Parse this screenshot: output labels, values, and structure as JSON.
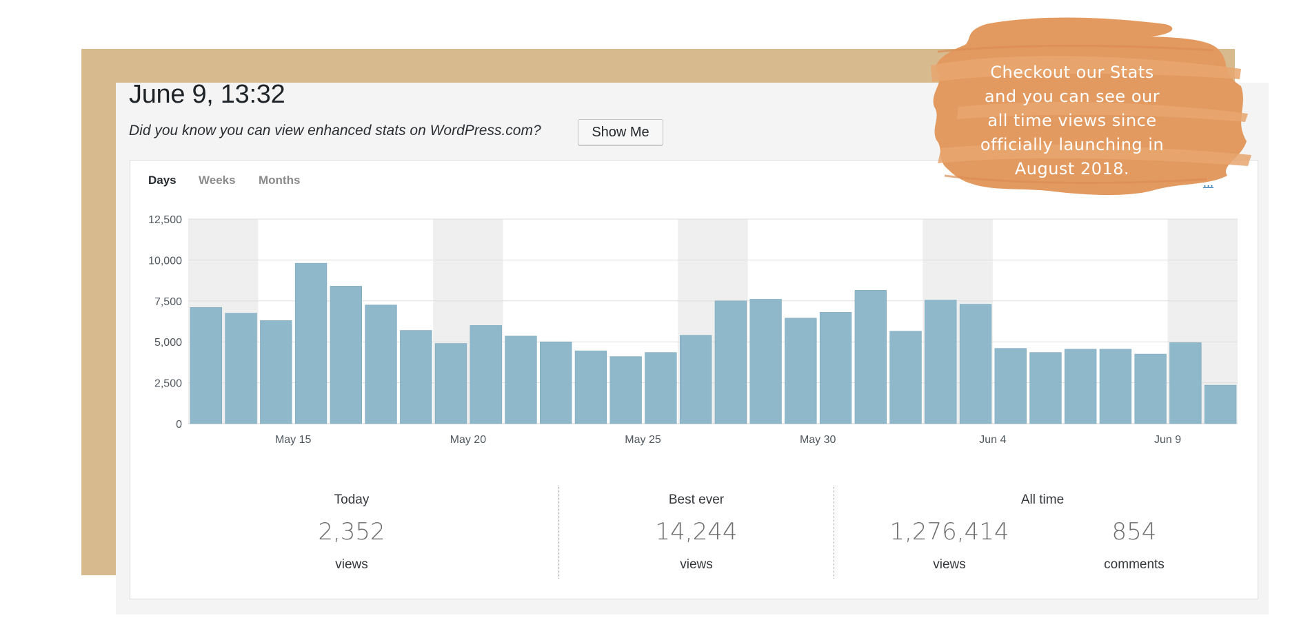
{
  "header": {
    "title": "June 9, 13:32",
    "notice": "Did you know you can view enhanced stats on WordPress.com?",
    "show_me_label": "Show Me"
  },
  "tabs": [
    "Days",
    "Weeks",
    "Months"
  ],
  "partial_link": "...",
  "colors": {
    "bar": "#8fb8cb",
    "weekend_band": "#efefef",
    "tan": "#d8ba8f",
    "brush": "#e39a60"
  },
  "note": {
    "lines": [
      "Checkout our Stats",
      "and you can see our",
      "all time views since",
      "officially launching in",
      "August 2018."
    ]
  },
  "chart_data": {
    "type": "bar",
    "categories": [
      "May 12",
      "May 13",
      "May 14",
      "May 15",
      "May 16",
      "May 17",
      "May 18",
      "May 19",
      "May 20",
      "May 21",
      "May 22",
      "May 23",
      "May 24",
      "May 25",
      "May 26",
      "May 27",
      "May 28",
      "May 29",
      "May 30",
      "May 31",
      "Jun 1",
      "Jun 2",
      "Jun 3",
      "Jun 4",
      "Jun 5",
      "Jun 6",
      "Jun 7",
      "Jun 8",
      "Jun 9",
      "Jun 10"
    ],
    "values": [
      7100,
      6750,
      6300,
      9800,
      8400,
      7250,
      5700,
      4900,
      6000,
      5350,
      5000,
      4450,
      4100,
      4350,
      5400,
      7500,
      7600,
      6450,
      6800,
      8150,
      5650,
      7550,
      7300,
      4600,
      4350,
      4550,
      4550,
      4250,
      4950,
      2352
    ],
    "x_tick_labels": [
      "May 15",
      "May 20",
      "May 25",
      "May 30",
      "Jun 4",
      "Jun 9"
    ],
    "y_tick_labels": [
      "0",
      "2,500",
      "5,000",
      "7,500",
      "10,000",
      "12,500"
    ],
    "ylim": [
      0,
      12500
    ],
    "weekend_bands": [
      [
        0,
        1
      ],
      [
        7,
        8
      ],
      [
        14,
        15
      ],
      [
        21,
        22
      ],
      [
        28,
        29
      ]
    ],
    "grid": true
  },
  "summary": {
    "today": {
      "label": "Today",
      "value": "2,352",
      "unit": "views"
    },
    "best_ever": {
      "label": "Best ever",
      "value": "14,244",
      "unit": "views"
    },
    "all_time": {
      "label": "All time",
      "views": "1,276,414",
      "views_unit": "views",
      "comments": "854",
      "comments_unit": "comments"
    }
  }
}
